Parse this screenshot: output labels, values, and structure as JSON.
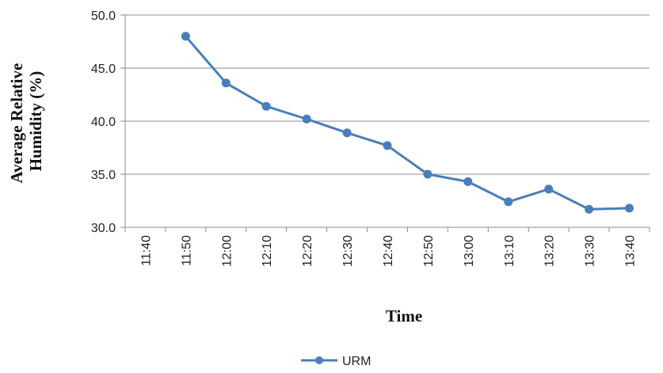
{
  "chart_data": {
    "type": "line",
    "categories": [
      "11:40",
      "11:50",
      "12:00",
      "12:10",
      "12:20",
      "12:30",
      "12:40",
      "12:50",
      "13:00",
      "13:10",
      "13:20",
      "13:30",
      "13:40"
    ],
    "y_ticks": [
      "30.0",
      "35.0",
      "40.0",
      "45.0",
      "50.0"
    ],
    "series": [
      {
        "name": "URM",
        "values": [
          null,
          48.0,
          43.6,
          41.4,
          40.2,
          38.9,
          37.7,
          35.0,
          34.3,
          32.4,
          33.6,
          31.7,
          31.8
        ]
      }
    ],
    "xlabel": "Time",
    "ylabel_line1": "Average Relative",
    "ylabel_line2": "Humidity (%)",
    "ylim": [
      30,
      50
    ],
    "grid": "horizontal",
    "legend_position": "bottom",
    "colors": {
      "series": "#4a7ebb",
      "grid": "#8c8c8c",
      "axis": "#8c8c8c"
    }
  }
}
